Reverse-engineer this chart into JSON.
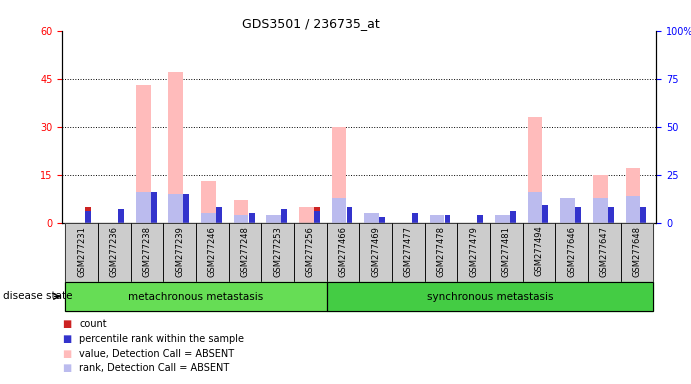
{
  "title": "GDS3501 / 236735_at",
  "samples": [
    "GSM277231",
    "GSM277236",
    "GSM277238",
    "GSM277239",
    "GSM277246",
    "GSM277248",
    "GSM277253",
    "GSM277256",
    "GSM277466",
    "GSM277469",
    "GSM277477",
    "GSM277478",
    "GSM277479",
    "GSM277481",
    "GSM277494",
    "GSM277646",
    "GSM277647",
    "GSM277648"
  ],
  "count_values": [
    5,
    4,
    0,
    0,
    0,
    0,
    0,
    5,
    0,
    0,
    3,
    0,
    0,
    0,
    0,
    0,
    0,
    0
  ],
  "percentile_values": [
    6,
    7,
    16,
    15,
    8,
    5,
    7,
    6,
    8,
    3,
    5,
    4,
    4,
    6,
    9,
    8,
    8,
    8
  ],
  "value_absent": [
    0,
    0,
    43,
    47,
    13,
    7,
    0,
    5,
    30,
    0,
    0,
    0,
    0,
    2,
    33,
    0,
    15,
    17
  ],
  "rank_absent": [
    0,
    0,
    16,
    15,
    5,
    4,
    4,
    0,
    13,
    5,
    0,
    4,
    0,
    4,
    16,
    13,
    13,
    14
  ],
  "groups": [
    {
      "label": "metachronous metastasis",
      "start": 0,
      "end": 8
    },
    {
      "label": "synchronous metastasis",
      "start": 8,
      "end": 18
    }
  ],
  "group_color1": "#66dd55",
  "group_color2": "#44cc44",
  "ylim_left": [
    0,
    60
  ],
  "ylim_right": [
    0,
    100
  ],
  "yticks_left": [
    0,
    15,
    30,
    45,
    60
  ],
  "ytick_labels_left": [
    "0",
    "15",
    "30",
    "45",
    "60"
  ],
  "yticks_right": [
    0,
    25,
    50,
    75,
    100
  ],
  "ytick_labels_right": [
    "0",
    "25",
    "50",
    "75",
    "100%"
  ],
  "count_color": "#cc2222",
  "percentile_color": "#3333cc",
  "value_absent_color": "#ffbbbb",
  "rank_absent_color": "#bbbbee",
  "plot_bg": "#ffffff",
  "sample_bg": "#cccccc",
  "legend_items": [
    {
      "color": "#cc2222",
      "label": "count"
    },
    {
      "color": "#3333cc",
      "label": "percentile rank within the sample"
    },
    {
      "color": "#ffbbbb",
      "label": "value, Detection Call = ABSENT"
    },
    {
      "color": "#bbbbee",
      "label": "rank, Detection Call = ABSENT"
    }
  ]
}
